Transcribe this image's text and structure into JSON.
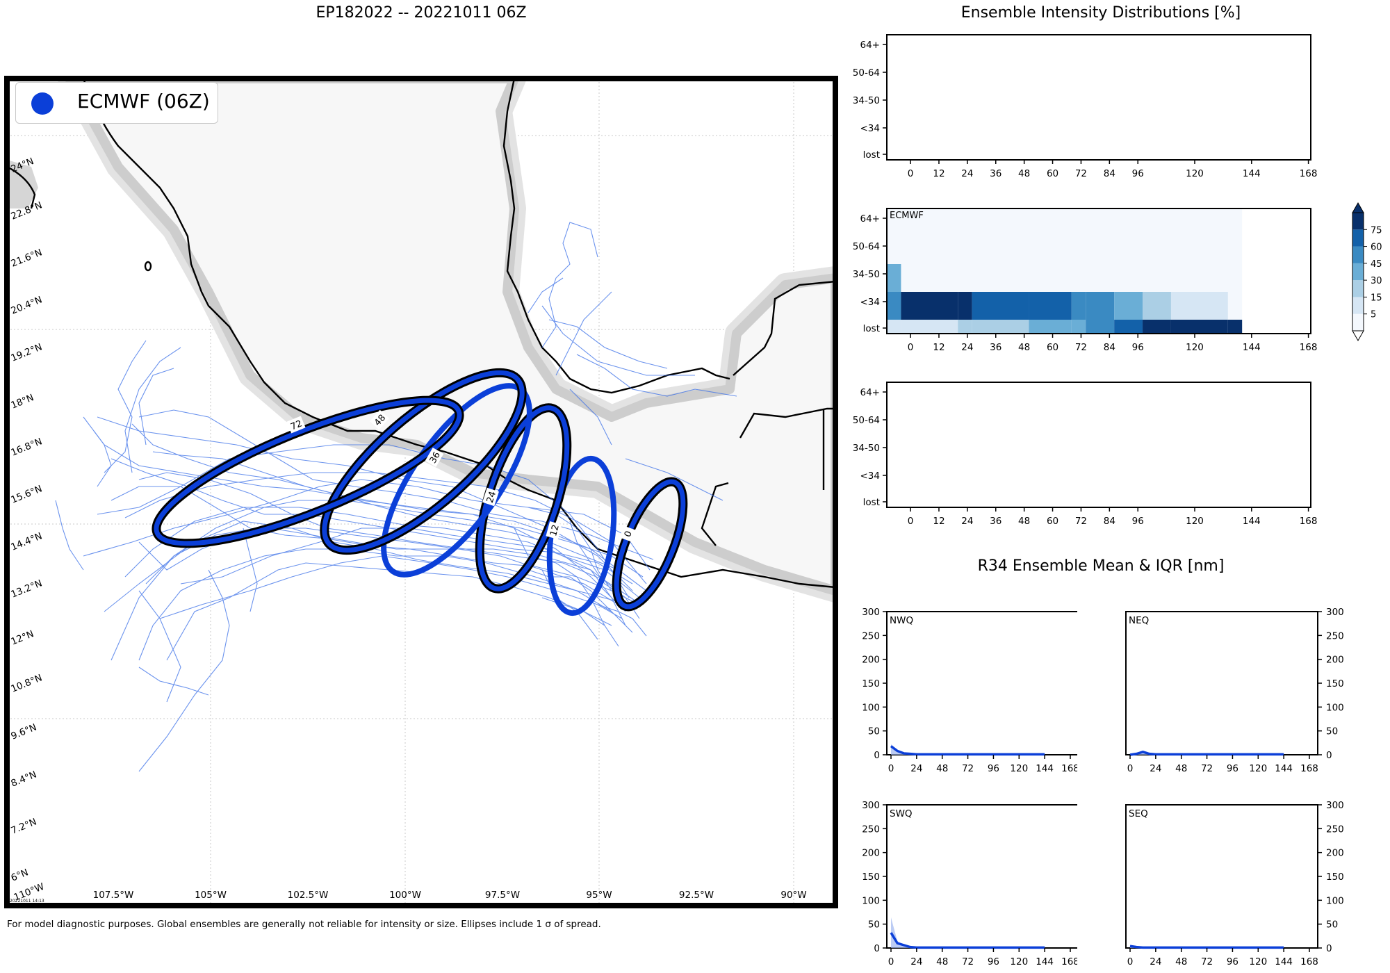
{
  "titles": {
    "main": "EP182022 -- 20221011 06Z",
    "intensity": "Ensemble Intensity Distributions [%]",
    "r34": "R34 Ensemble Mean & IQR [nm]"
  },
  "footer": "For model diagnostic purposes. Global ensembles are generally not reliable for intensity or size. Ellipses include 1 σ of spread.",
  "stamp": "20221011 14:13",
  "colors": {
    "ensemble_blue": "#0b3fd8",
    "track_blue": "#3a6fe8",
    "land": "#f7f7f7"
  },
  "chart_data": [
    {
      "type": "map",
      "title": "EP182022 -- 20221011 06Z",
      "legend": {
        "label": "ECMWF (06Z)",
        "color": "#0b3fd8",
        "placement": "top-left"
      },
      "lon_ticks": [
        "107.5°W",
        "105°W",
        "102.5°W",
        "100°W",
        "97.5°W",
        "95°W",
        "92.5°W",
        "90°W"
      ],
      "lat_ticks": [
        "24°N",
        "22.8°N",
        "21.6°N",
        "20.4°N",
        "19.2°N",
        "18°N",
        "16.8°N",
        "15.6°N",
        "14.4°N",
        "13.2°N",
        "12°N",
        "10.8°N",
        "9.6°N",
        "8.4°N",
        "7.2°N",
        "6°N"
      ],
      "corner_lon_label": "110°W",
      "ellipse_labels": [
        "0",
        "12",
        "24",
        "36",
        "48",
        "72"
      ]
    },
    {
      "type": "heatmap",
      "panel": "empty-top",
      "y_categories": [
        "64+",
        "50-64",
        "34-50",
        "<34",
        "lost"
      ],
      "x_ticks": [
        0,
        12,
        24,
        36,
        48,
        60,
        72,
        84,
        96,
        120,
        144,
        168
      ]
    },
    {
      "type": "heatmap",
      "panel": "ECMWF",
      "label": "ECMWF",
      "y_categories": [
        "64+",
        "50-64",
        "34-50",
        "<34",
        "lost"
      ],
      "x_ticks": [
        0,
        12,
        24,
        36,
        48,
        60,
        72,
        84,
        96,
        120,
        144,
        168
      ],
      "colorbar_ticks": [
        5,
        15,
        30,
        45,
        60,
        75
      ],
      "columns": [
        {
          "from": 0,
          "to": 6,
          "values": {
            "34-50": 30,
            "<34": 45,
            "lost": 5
          }
        },
        {
          "from": 6,
          "to": 30,
          "values": {
            "<34": 75,
            "lost": 5
          }
        },
        {
          "from": 30,
          "to": 36,
          "values": {
            "<34": 75,
            "lost": 15
          }
        },
        {
          "from": 36,
          "to": 60,
          "values": {
            "<34": 60,
            "lost": 15
          }
        },
        {
          "from": 60,
          "to": 78,
          "values": {
            "<34": 60,
            "lost": 30
          }
        },
        {
          "from": 78,
          "to": 84,
          "values": {
            "<34": 45,
            "lost": 30
          }
        },
        {
          "from": 84,
          "to": 96,
          "values": {
            "<34": 45,
            "lost": 45
          }
        },
        {
          "from": 96,
          "to": 108,
          "values": {
            "<34": 30,
            "lost": 60
          }
        },
        {
          "from": 108,
          "to": 120,
          "values": {
            "<34": 15,
            "lost": 75
          }
        },
        {
          "from": 120,
          "to": 144,
          "values": {
            "<34": 5,
            "lost": 75
          }
        },
        {
          "from": 144,
          "to": 150,
          "values": {
            "lost": 75
          }
        }
      ]
    },
    {
      "type": "heatmap",
      "panel": "empty-bottom",
      "y_categories": [
        "64+",
        "50-64",
        "34-50",
        "<34",
        "lost"
      ],
      "x_ticks": [
        0,
        12,
        24,
        36,
        48,
        60,
        72,
        84,
        96,
        120,
        144,
        168
      ]
    },
    {
      "type": "line",
      "panel": "NWQ",
      "x": [
        0,
        6,
        12,
        18,
        24,
        36,
        48,
        60,
        72,
        84,
        96,
        108,
        120,
        132,
        144
      ],
      "mean": [
        18,
        8,
        3,
        2,
        1,
        1,
        1,
        1,
        1,
        1,
        1,
        1,
        1,
        1,
        1
      ],
      "iqr_upper": [
        22,
        10,
        4,
        2,
        1,
        1,
        1,
        1,
        1,
        1,
        1,
        1,
        1,
        1,
        1
      ],
      "ylim": [
        0,
        300
      ],
      "xlim": [
        0,
        168
      ]
    },
    {
      "type": "line",
      "panel": "NEQ",
      "x": [
        0,
        6,
        12,
        18,
        24,
        36,
        48,
        60,
        72,
        84,
        96,
        108,
        120,
        132,
        144
      ],
      "mean": [
        0,
        2,
        6,
        2,
        1,
        1,
        1,
        1,
        1,
        1,
        1,
        1,
        1,
        1,
        1
      ],
      "iqr_upper": [
        0,
        3,
        8,
        3,
        1,
        1,
        1,
        1,
        1,
        1,
        1,
        1,
        1,
        1,
        1
      ],
      "ylim": [
        0,
        300
      ],
      "xlim": [
        0,
        168
      ]
    },
    {
      "type": "line",
      "panel": "SWQ",
      "x": [
        0,
        6,
        12,
        18,
        24,
        36,
        48,
        60,
        72,
        84,
        96,
        108,
        120,
        132,
        144
      ],
      "mean": [
        32,
        10,
        6,
        2,
        1,
        1,
        1,
        1,
        1,
        1,
        1,
        1,
        1,
        1,
        1
      ],
      "iqr_upper": [
        64,
        14,
        8,
        3,
        1,
        1,
        1,
        1,
        1,
        1,
        1,
        1,
        1,
        1,
        1
      ],
      "ylim": [
        0,
        300
      ],
      "xlim": [
        0,
        168
      ]
    },
    {
      "type": "line",
      "panel": "SEQ",
      "x": [
        0,
        6,
        12,
        18,
        24,
        36,
        48,
        60,
        72,
        84,
        96,
        108,
        120,
        132,
        144
      ],
      "mean": [
        4,
        2,
        1,
        1,
        1,
        1,
        1,
        1,
        1,
        1,
        1,
        1,
        1,
        1,
        1
      ],
      "iqr_upper": [
        5,
        2,
        1,
        1,
        1,
        1,
        1,
        1,
        1,
        1,
        1,
        1,
        1,
        1,
        1
      ],
      "ylim": [
        0,
        300
      ],
      "xlim": [
        0,
        168
      ]
    }
  ]
}
